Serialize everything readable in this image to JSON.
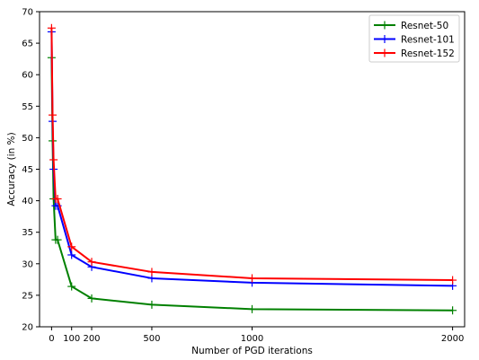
{
  "chart_data": {
    "type": "line",
    "title": "",
    "xlabel": "Number of PGD iterations",
    "ylabel": "Accuracy (in %)",
    "xlim": [
      -60,
      2060
    ],
    "ylim": [
      20,
      70
    ],
    "xticks": [
      0,
      100,
      200,
      500,
      1000,
      2000
    ],
    "xtick_labels": [
      "0",
      "100",
      "200",
      "500",
      "1000",
      "2000"
    ],
    "yticks": [
      20,
      25,
      30,
      35,
      40,
      45,
      50,
      55,
      60,
      65,
      70
    ],
    "ytick_labels": [
      "20",
      "25",
      "30",
      "35",
      "40",
      "45",
      "50",
      "55",
      "60",
      "65",
      "70"
    ],
    "grid": false,
    "legend_position": "top-right",
    "marker": "plus",
    "series": [
      {
        "name": "Resnet-50",
        "color": "#008000",
        "x": [
          0,
          5,
          10,
          20,
          30,
          100,
          200,
          500,
          1000,
          2000
        ],
        "y": [
          62.7,
          49.5,
          40.3,
          33.8,
          33.8,
          26.4,
          24.5,
          23.5,
          22.8,
          22.6
        ]
      },
      {
        "name": "Resnet-101",
        "color": "#0000ff",
        "x": [
          0,
          5,
          10,
          20,
          30,
          100,
          200,
          500,
          1000,
          2000
        ],
        "y": [
          66.8,
          52.6,
          45.0,
          39.2,
          39.2,
          31.4,
          29.5,
          27.7,
          27.0,
          26.5
        ]
      },
      {
        "name": "Resnet-152",
        "color": "#ff0000",
        "x": [
          0,
          5,
          10,
          20,
          30,
          100,
          200,
          500,
          1000,
          2000
        ],
        "y": [
          67.4,
          53.6,
          46.5,
          40.3,
          40.3,
          32.7,
          30.3,
          28.7,
          27.7,
          27.4
        ]
      }
    ]
  }
}
